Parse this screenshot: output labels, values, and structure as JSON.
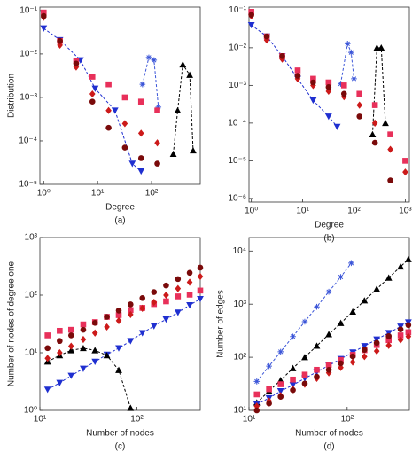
{
  "chart_data": [
    {
      "type": "scatter",
      "log_x": true,
      "log_y": true,
      "x_label": "Degree",
      "y_label": "Distribution",
      "caption": "(a)",
      "xlim": [
        0.85,
        800
      ],
      "ylim": [
        1e-05,
        0.12
      ],
      "xticks": [
        {
          "value": 1,
          "label": "10⁰"
        },
        {
          "value": 10,
          "label": "10¹"
        },
        {
          "value": 100,
          "label": "10²"
        }
      ],
      "yticks": [
        {
          "value": 1e-05,
          "label": "10⁻⁵"
        },
        {
          "value": 0.0001,
          "label": "10⁻⁴"
        },
        {
          "value": 0.001,
          "label": "10⁻³"
        },
        {
          "value": 0.01,
          "label": "10⁻²"
        },
        {
          "value": 0.1,
          "label": "10⁻¹"
        }
      ],
      "series": [
        {
          "marker": "tri-down",
          "color": "#1f2fd0",
          "dashed": true,
          "x": [
            1,
            2,
            4.8,
            9,
            21,
            44,
            64
          ],
          "values": [
            0.039,
            0.021,
            0.0072,
            0.0016,
            0.0005,
            3e-05,
            2e-05
          ]
        },
        {
          "marker": "star",
          "color": "#3b55d8",
          "dashed": true,
          "x": [
            68,
            89,
            111,
            134
          ],
          "values": [
            0.002,
            0.0083,
            0.0072,
            0.0006
          ]
        },
        {
          "marker": "tri-up",
          "color": "#000000",
          "dashed": true,
          "x": [
            253,
            305,
            380,
            510,
            590
          ],
          "values": [
            5e-05,
            0.0005,
            0.0057,
            0.0033,
            6e-05
          ]
        },
        {
          "marker": "square",
          "color": "#e8305a",
          "x": [
            1,
            2,
            4,
            8,
            16,
            32,
            64,
            128
          ],
          "values": [
            0.09,
            0.02,
            0.007,
            0.003,
            0.002,
            0.001,
            0.0008,
            0.0005
          ]
        },
        {
          "marker": "diamond",
          "color": "#cc1a1a",
          "x": [
            1,
            2,
            4,
            8,
            16,
            32,
            64,
            128
          ],
          "values": [
            0.07,
            0.016,
            0.005,
            0.0012,
            0.0005,
            0.00025,
            0.00015,
            9e-05
          ]
        },
        {
          "marker": "circle",
          "color": "#7a0a0a",
          "x": [
            1,
            2,
            4,
            8,
            16,
            32,
            64,
            128
          ],
          "values": [
            0.075,
            0.02,
            0.006,
            0.0008,
            0.0002,
            7e-05,
            4e-05,
            3e-05
          ]
        }
      ]
    },
    {
      "type": "scatter",
      "log_x": true,
      "log_y": true,
      "x_label": "Degree",
      "caption": "(b)",
      "xlim": [
        0.9,
        1200
      ],
      "ylim": [
        8e-07,
        0.12
      ],
      "xticks": [
        {
          "value": 1,
          "label": "10⁰"
        },
        {
          "value": 10,
          "label": "10¹"
        },
        {
          "value": 100,
          "label": "10²"
        },
        {
          "value": 1000,
          "label": "10³"
        }
      ],
      "yticks": [
        {
          "value": 1e-06,
          "label": "10⁻⁶"
        },
        {
          "value": 1e-05,
          "label": "10⁻⁵"
        },
        {
          "value": 0.0001,
          "label": "10⁻⁴"
        },
        {
          "value": 0.001,
          "label": "10⁻³"
        },
        {
          "value": 0.01,
          "label": "10⁻²"
        },
        {
          "value": 0.1,
          "label": "10⁻¹"
        }
      ],
      "series": [
        {
          "marker": "tri-down",
          "color": "#1f2fd0",
          "dashed": true,
          "x": [
            1,
            2,
            4,
            8,
            16,
            32,
            47
          ],
          "values": [
            0.04,
            0.02,
            0.006,
            0.0015,
            0.0004,
            0.00015,
            8e-05
          ]
        },
        {
          "marker": "star",
          "color": "#3b55d8",
          "dashed": true,
          "x": [
            55,
            75,
            88,
            100
          ],
          "values": [
            0.0011,
            0.0128,
            0.0075,
            0.0015
          ]
        },
        {
          "marker": "tri-up",
          "color": "#000000",
          "dashed": true,
          "x": [
            230,
            280,
            340,
            410
          ],
          "values": [
            5e-05,
            0.01,
            0.01,
            0.0001
          ]
        },
        {
          "marker": "square",
          "color": "#e8305a",
          "x": [
            1,
            2,
            4,
            8,
            16,
            32,
            64,
            128,
            256,
            512,
            1000
          ],
          "values": [
            0.09,
            0.02,
            0.006,
            0.0025,
            0.0015,
            0.0012,
            0.001,
            0.0006,
            0.0003,
            5e-05,
            1e-05
          ]
        },
        {
          "marker": "diamond",
          "color": "#cc1a1a",
          "x": [
            1,
            2,
            4,
            8,
            16,
            32,
            64,
            128,
            256,
            512,
            1000
          ],
          "values": [
            0.07,
            0.016,
            0.005,
            0.0015,
            0.001,
            0.0007,
            0.0005,
            0.0003,
            0.0001,
            2e-05,
            5e-06
          ]
        },
        {
          "marker": "circle",
          "color": "#7a0a0a",
          "x": [
            1,
            2,
            4,
            8,
            16,
            32,
            64,
            128,
            256,
            512
          ],
          "values": [
            0.075,
            0.02,
            0.006,
            0.0018,
            0.0012,
            0.0009,
            0.0006,
            0.00015,
            3e-05,
            3e-06
          ]
        }
      ]
    },
    {
      "type": "scatter",
      "log_x": true,
      "log_y": true,
      "x_label": "Number of nodes",
      "y_label": "Number of nodes of degree one",
      "caption": "(c)",
      "xlim": [
        10,
        450
      ],
      "ylim": [
        1,
        1000
      ],
      "xticks": [
        {
          "value": 10,
          "label": "10¹"
        },
        {
          "value": 100,
          "label": "10²"
        }
      ],
      "yticks": [
        {
          "value": 1,
          "label": "10⁰"
        },
        {
          "value": 10,
          "label": "10¹"
        },
        {
          "value": 100,
          "label": "10²"
        },
        {
          "value": 1000,
          "label": "10³"
        }
      ],
      "series": [
        {
          "marker": "tri-down",
          "color": "#1f2fd0",
          "dashed": true,
          "x": [
            12,
            16,
            21,
            28,
            37,
            49,
            65,
            86,
            114,
            150,
            200,
            265,
            350,
            450
          ],
          "values": [
            2.3,
            3,
            4,
            5.3,
            7,
            9.3,
            12,
            16,
            22,
            29,
            38,
            50,
            67,
            86
          ]
        },
        {
          "marker": "tri-up",
          "color": "#000000",
          "dashed": true,
          "x": [
            12,
            16,
            21,
            28,
            37,
            49,
            65,
            86
          ],
          "values": [
            7,
            9,
            11,
            12,
            11,
            9,
            5,
            1.1
          ]
        },
        {
          "marker": "square",
          "color": "#e8305a",
          "x": [
            12,
            16,
            21,
            28,
            37,
            49,
            65,
            86,
            114,
            150,
            200,
            265,
            350,
            450
          ],
          "values": [
            20,
            24,
            25,
            31,
            34,
            42,
            45,
            55,
            60,
            70,
            78,
            95,
            102,
            120
          ]
        },
        {
          "marker": "diamond",
          "color": "#cc1a1a",
          "x": [
            12,
            16,
            21,
            28,
            37,
            49,
            65,
            86,
            114,
            150,
            200,
            265,
            350,
            450
          ],
          "values": [
            8,
            10,
            13,
            17,
            22,
            28,
            36,
            46,
            59,
            75,
            100,
            130,
            167,
            210
          ]
        },
        {
          "marker": "circle",
          "color": "#7a0a0a",
          "x": [
            12,
            16,
            21,
            28,
            37,
            49,
            65,
            86,
            114,
            150,
            200,
            265,
            350,
            450
          ],
          "values": [
            12,
            16,
            20,
            25,
            33,
            42,
            54,
            69,
            89,
            113,
            147,
            190,
            244,
            300
          ]
        }
      ]
    },
    {
      "type": "scatter",
      "log_x": true,
      "log_y": true,
      "x_label": "Number of nodes",
      "y_label": "Number of edges",
      "caption": "(d)",
      "xlim": [
        10,
        430
      ],
      "ylim": [
        10,
        18000
      ],
      "xticks": [
        {
          "value": 10,
          "label": "10¹"
        },
        {
          "value": 100,
          "label": "10²"
        }
      ],
      "yticks": [
        {
          "value": 10,
          "label": "10¹"
        },
        {
          "value": 100,
          "label": "10²"
        },
        {
          "value": 1000,
          "label": "10³"
        },
        {
          "value": 10000,
          "label": "10⁴"
        }
      ],
      "series": [
        {
          "marker": "star",
          "color": "#3b55d8",
          "dashed": true,
          "x": [
            12,
            16,
            21,
            28,
            37,
            49,
            65,
            86,
            110
          ],
          "values": [
            35,
            68,
            127,
            245,
            467,
            890,
            1710,
            3250,
            5940
          ]
        },
        {
          "marker": "tri-up",
          "color": "#000000",
          "dashed": true,
          "x": [
            12,
            16,
            21,
            28,
            37,
            49,
            65,
            86,
            114,
            150,
            200,
            265,
            350,
            420
          ],
          "values": [
            14,
            23,
            37,
            62,
            100,
            164,
            270,
            440,
            720,
            1170,
            1930,
            3140,
            5090,
            7000
          ]
        },
        {
          "marker": "tri-down",
          "color": "#1f2fd0",
          "dashed": true,
          "x": [
            12,
            16,
            21,
            28,
            37,
            49,
            65,
            86,
            114,
            150,
            200,
            265,
            350,
            420
          ],
          "values": [
            13,
            17,
            23,
            30,
            40,
            53,
            70,
            93,
            124,
            163,
            217,
            287,
            379,
            455
          ]
        },
        {
          "marker": "square",
          "color": "#e8305a",
          "x": [
            12,
            16,
            21,
            28,
            37,
            49,
            65,
            86,
            114,
            150,
            200,
            265,
            350,
            420
          ],
          "values": [
            20,
            25,
            31,
            38,
            47,
            58,
            72,
            89,
            111,
            136,
            170,
            210,
            258,
            296
          ]
        },
        {
          "marker": "diamond",
          "color": "#cc1a1a",
          "x": [
            12,
            16,
            21,
            28,
            37,
            49,
            65,
            86,
            114,
            150,
            200,
            265,
            350,
            420
          ],
          "values": [
            12,
            15,
            19,
            25,
            31,
            40,
            51,
            64,
            81,
            103,
            131,
            167,
            212,
            246
          ]
        },
        {
          "marker": "circle",
          "color": "#7a0a0a",
          "x": [
            12,
            16,
            21,
            28,
            37,
            49,
            65,
            86,
            114,
            150,
            200,
            265,
            350,
            420
          ],
          "values": [
            10,
            13.5,
            18,
            24,
            32,
            43,
            58,
            77,
            104,
            138,
            187,
            250,
            334,
            404
          ]
        }
      ]
    }
  ]
}
